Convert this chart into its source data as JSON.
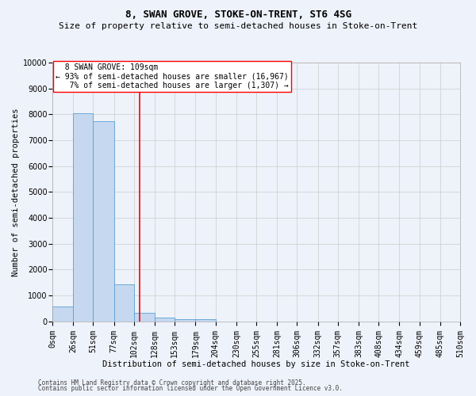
{
  "title": "8, SWAN GROVE, STOKE-ON-TRENT, ST6 4SG",
  "subtitle": "Size of property relative to semi-detached houses in Stoke-on-Trent",
  "xlabel": "Distribution of semi-detached houses by size in Stoke-on-Trent",
  "ylabel": "Number of semi-detached properties",
  "property_label": "8 SWAN GROVE: 109sqm",
  "pct_smaller": 93,
  "n_smaller": "16,967",
  "pct_larger": 7,
  "n_larger": "1,307",
  "bin_edges": [
    0,
    26,
    51,
    77,
    102,
    128,
    153,
    179,
    204,
    230,
    255,
    281,
    306,
    332,
    357,
    383,
    408,
    434,
    459,
    485,
    510
  ],
  "bar_heights": [
    570,
    8050,
    7750,
    1430,
    320,
    145,
    90,
    85,
    0,
    0,
    0,
    0,
    0,
    0,
    0,
    0,
    0,
    0,
    0,
    0
  ],
  "bar_color": "#c5d8f0",
  "bar_edge_color": "#5a9fd4",
  "vline_color": "red",
  "vline_x": 109,
  "ylim": [
    0,
    10000
  ],
  "yticks": [
    0,
    1000,
    2000,
    3000,
    4000,
    5000,
    6000,
    7000,
    8000,
    9000,
    10000
  ],
  "grid_color": "#cccccc",
  "background_color": "#eef2fa",
  "footer_line1": "Contains HM Land Registry data © Crown copyright and database right 2025.",
  "footer_line2": "Contains public sector information licensed under the Open Government Licence v3.0.",
  "title_fontsize": 9,
  "subtitle_fontsize": 8,
  "axis_label_fontsize": 7.5,
  "tick_fontsize": 7,
  "annotation_fontsize": 7,
  "footer_fontsize": 5.5
}
